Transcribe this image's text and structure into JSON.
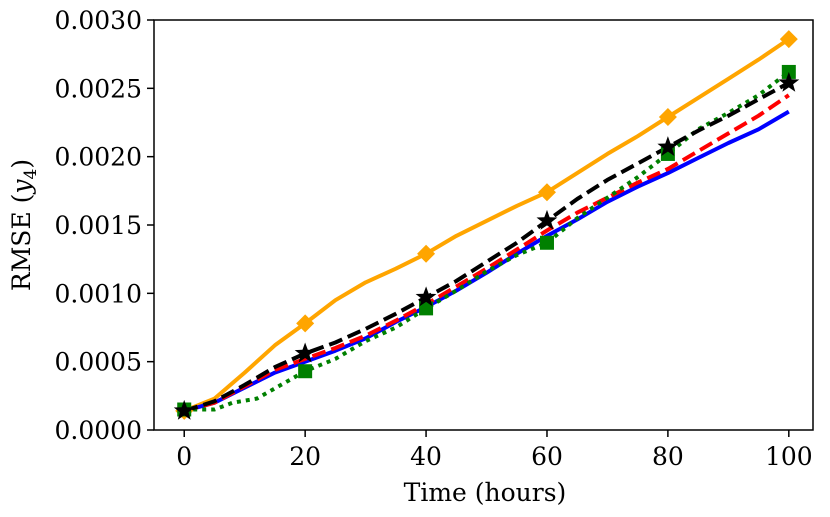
{
  "chart_data": {
    "type": "line",
    "title": "",
    "xlabel": "Time (hours)",
    "ylabel_main": "RMSE (",
    "ylabel_var": "y",
    "ylabel_sub": "4",
    "ylabel_close": ")",
    "xlim": [
      -5,
      104
    ],
    "ylim": [
      0,
      0.003
    ],
    "xticks": [
      0,
      20,
      40,
      60,
      80,
      100
    ],
    "xtick_labels": [
      "0",
      "20",
      "40",
      "60",
      "80",
      "100"
    ],
    "yticks": [
      0,
      0.0005,
      0.001,
      0.0015,
      0.002,
      0.0025,
      0.003
    ],
    "ytick_labels": [
      "0.0000",
      "0.0005",
      "0.0010",
      "0.0015",
      "0.0020",
      "0.0025",
      "0.0030"
    ],
    "series": [
      {
        "name": "orange-series",
        "color": "#ffa500",
        "style": "solid",
        "marker": "diamond",
        "x": [
          0,
          5,
          10,
          15,
          20,
          25,
          30,
          35,
          40,
          45,
          50,
          55,
          60,
          65,
          70,
          75,
          80,
          85,
          90,
          95,
          100
        ],
        "y": [
          0.00014,
          0.00023,
          0.00042,
          0.00062,
          0.00078,
          0.00095,
          0.00108,
          0.00118,
          0.00129,
          0.00142,
          0.00153,
          0.00164,
          0.00174,
          0.00188,
          0.00202,
          0.00215,
          0.00229,
          0.00243,
          0.00257,
          0.00271,
          0.00286
        ],
        "marker_x": [
          0,
          20,
          40,
          60,
          80,
          100
        ],
        "marker_y": [
          0.00014,
          0.00078,
          0.00129,
          0.00174,
          0.00229,
          0.00286
        ]
      },
      {
        "name": "blue-series",
        "color": "#0000ff",
        "style": "solid",
        "marker": "none",
        "x": [
          0,
          5,
          10,
          15,
          20,
          25,
          30,
          35,
          40,
          45,
          50,
          55,
          60,
          65,
          70,
          75,
          80,
          85,
          90,
          95,
          100
        ],
        "y": [
          0.00014,
          0.0002,
          0.00031,
          0.00042,
          0.0005,
          0.00058,
          0.00067,
          0.00079,
          0.0009,
          0.00102,
          0.00115,
          0.00129,
          0.00142,
          0.00154,
          0.00167,
          0.00178,
          0.00188,
          0.00199,
          0.0021,
          0.0022,
          0.00233
        ]
      },
      {
        "name": "red-series",
        "color": "#ff0000",
        "style": "dashed",
        "marker": "none",
        "x": [
          0,
          5,
          10,
          15,
          20,
          25,
          30,
          35,
          40,
          45,
          50,
          55,
          60,
          65,
          70,
          75,
          80,
          85,
          90,
          95,
          100
        ],
        "y": [
          0.00014,
          0.0002,
          0.00032,
          0.00044,
          0.00052,
          0.0006,
          0.00069,
          0.0008,
          0.00092,
          0.00105,
          0.00118,
          0.00132,
          0.00146,
          0.00159,
          0.0017,
          0.00181,
          0.00191,
          0.00204,
          0.00217,
          0.0023,
          0.00245
        ]
      },
      {
        "name": "green-series",
        "color": "#008000",
        "style": "dotted",
        "marker": "square",
        "x": [
          0,
          5,
          8,
          12,
          16,
          20,
          25,
          30,
          35,
          40,
          45,
          50,
          55,
          60,
          65,
          70,
          75,
          80,
          85,
          90,
          95,
          100
        ],
        "y": [
          0.00015,
          0.00015,
          0.0002,
          0.00023,
          0.00033,
          0.00043,
          0.00052,
          0.00065,
          0.00075,
          0.00089,
          0.00102,
          0.00116,
          0.00128,
          0.00137,
          0.00155,
          0.0017,
          0.00185,
          0.00202,
          0.0022,
          0.00232,
          0.00245,
          0.00262
        ],
        "marker_x": [
          0,
          20,
          40,
          60,
          80,
          100
        ],
        "marker_y": [
          0.00015,
          0.00043,
          0.00089,
          0.00137,
          0.00202,
          0.00262
        ]
      },
      {
        "name": "black-series",
        "color": "#000000",
        "style": "dashed",
        "marker": "star",
        "x": [
          0,
          5,
          10,
          15,
          20,
          25,
          30,
          35,
          40,
          45,
          50,
          55,
          60,
          65,
          70,
          75,
          80,
          85,
          90,
          95,
          100
        ],
        "y": [
          0.00014,
          0.00021,
          0.00033,
          0.00046,
          0.00056,
          0.00064,
          0.00074,
          0.00085,
          0.00097,
          0.00109,
          0.00123,
          0.00137,
          0.00153,
          0.00169,
          0.00183,
          0.00195,
          0.00207,
          0.00219,
          0.0023,
          0.00242,
          0.00254
        ],
        "marker_x": [
          0,
          20,
          40,
          60,
          80,
          100
        ],
        "marker_y": [
          0.00014,
          0.00056,
          0.00097,
          0.00153,
          0.00207,
          0.00254
        ]
      }
    ]
  }
}
